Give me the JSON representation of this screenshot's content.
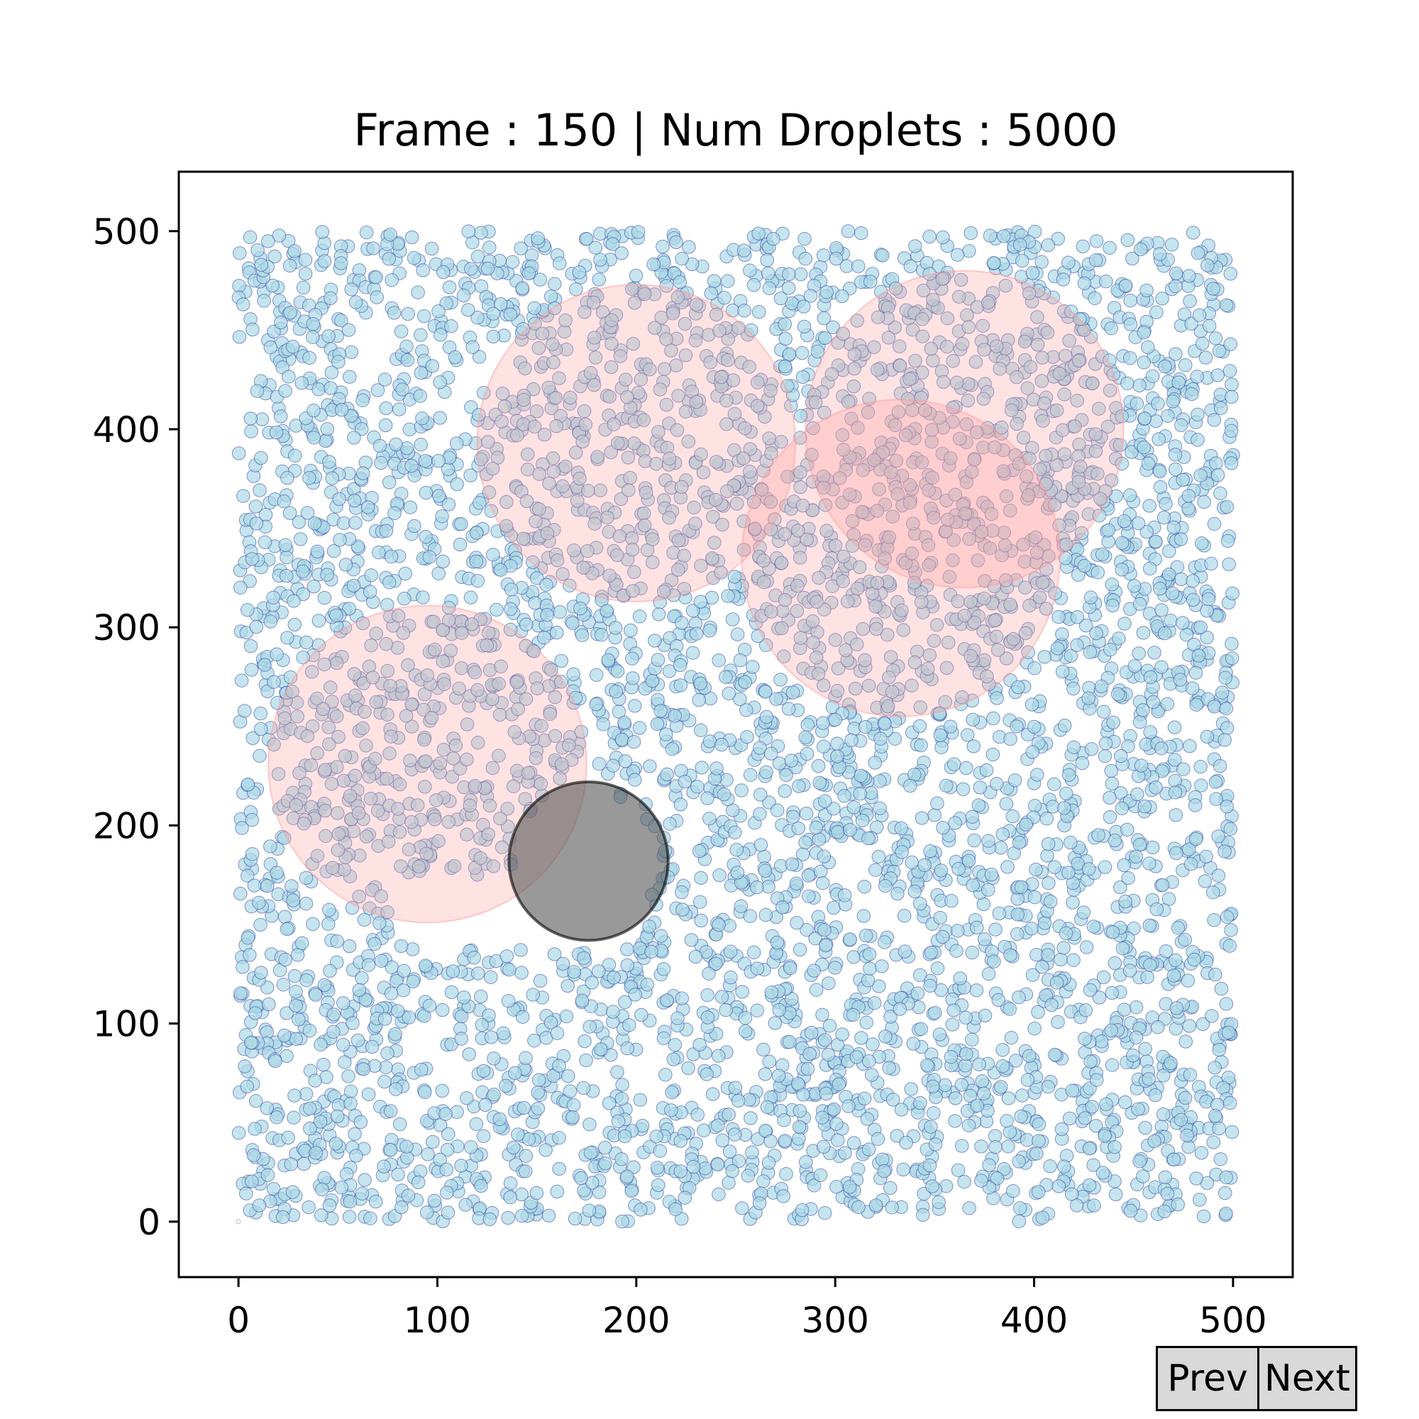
{
  "chart_data": {
    "type": "scatter",
    "title": "Frame : 150 | Num Droplets : 5000",
    "xlabel": "",
    "ylabel": "",
    "xlim": [
      -30,
      530
    ],
    "ylim": [
      -28,
      530
    ],
    "xticks": [
      0,
      100,
      200,
      300,
      400,
      500
    ],
    "yticks": [
      0,
      100,
      200,
      300,
      400,
      500
    ],
    "grid": false,
    "droplet_count": 5000,
    "droplet_region": {
      "x": [
        0,
        500
      ],
      "y": [
        0,
        500
      ]
    },
    "droplet_radius": 3.3,
    "droplet_fill": "#add8e6",
    "droplet_edge": "#2a3fa0",
    "zones": [
      {
        "cx": 200,
        "cy": 393,
        "r": 80
      },
      {
        "cx": 365,
        "cy": 400,
        "r": 80
      },
      {
        "cx": 333,
        "cy": 335,
        "r": 80
      },
      {
        "cx": 95,
        "cy": 231,
        "r": 80
      }
    ],
    "zone_color": "#ff9999",
    "obstacle": {
      "cx": 176,
      "cy": 182,
      "r": 40,
      "color": "#555555"
    },
    "empty_band": {
      "x": [
        80,
        200
      ],
      "y": [
        140,
        175
      ]
    },
    "origin_marker": {
      "x": 0,
      "y": 0
    }
  },
  "controls": {
    "prev_label": "Prev",
    "next_label": "Next"
  }
}
